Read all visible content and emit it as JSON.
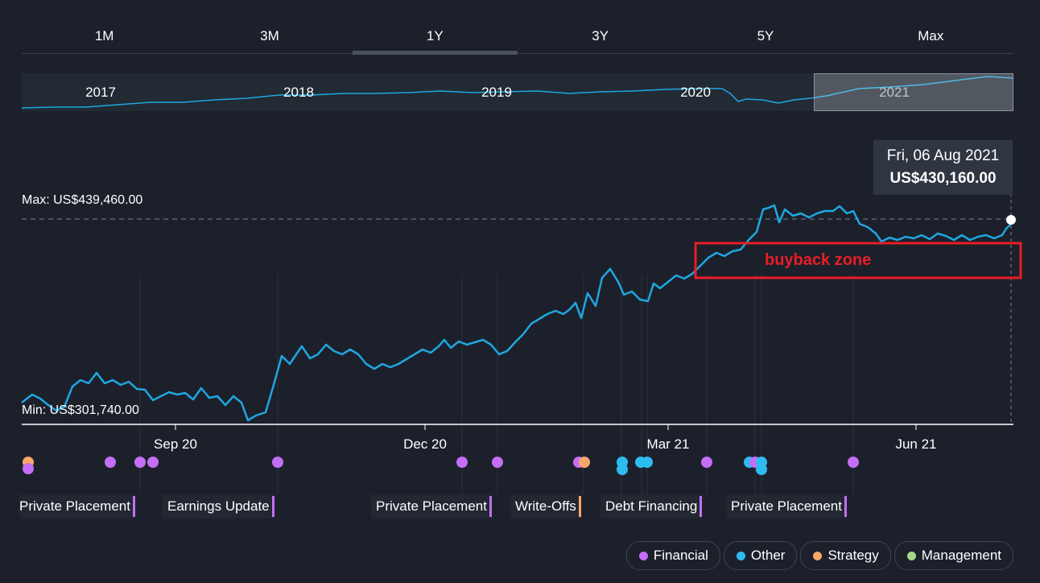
{
  "range_tabs": [
    "1M",
    "3M",
    "1Y",
    "3Y",
    "5Y",
    "Max"
  ],
  "active_tab": "1Y",
  "navigator": {
    "years": [
      "2017",
      "2018",
      "2019",
      "2020",
      "2021"
    ]
  },
  "chart_data": {
    "type": "line",
    "series": [
      {
        "values": []
      }
    ],
    "ylim": [
      301740,
      439460
    ],
    "max_label": "Max: US$439,460.00",
    "min_label": "Min: US$301,740.00",
    "x_ticks": [
      "Sep 20",
      "Dec 20",
      "Mar 21",
      "Jun 21"
    ],
    "tooltip": {
      "date": "Fri, 06 Aug 2021",
      "value": "US$430,160.00"
    },
    "annotation": "buyback zone",
    "color": "#1ea7e1"
  },
  "events": {
    "labels": [
      "Private Placement",
      "Earnings Update",
      "Private Placement",
      "Write-Offs",
      "Debt Financing",
      "Private Placement"
    ],
    "label_colors": [
      "#c46ef5",
      "#c46ef5",
      "#c46ef5",
      "#f7a76a",
      "#c46ef5",
      "#c46ef5"
    ]
  },
  "legend": [
    {
      "label": "Financial",
      "color": "#c46ef5"
    },
    {
      "label": "Other",
      "color": "#2dbcf2"
    },
    {
      "label": "Strategy",
      "color": "#f7a76a"
    },
    {
      "label": "Management",
      "color": "#a6d88a"
    }
  ]
}
